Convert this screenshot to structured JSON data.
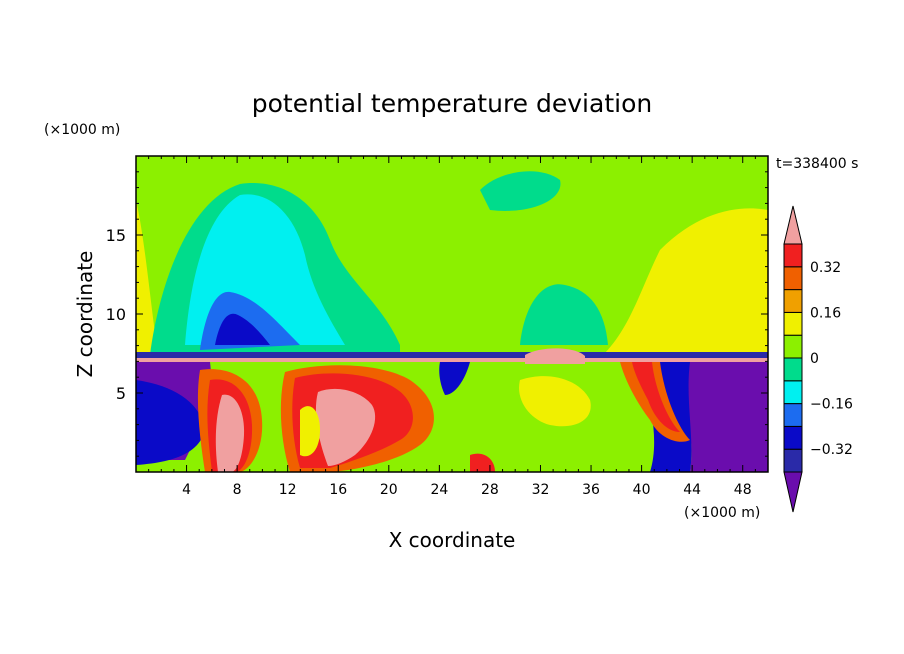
{
  "chart_data": {
    "type": "heatmap",
    "title": "potential temperature deviation",
    "xlabel": "X coordinate",
    "ylabel": "Z coordinate",
    "x_unit": "(×1000 m)",
    "y_unit": "(×1000 m)",
    "time_label": "t=338400 s",
    "xlim": [
      0,
      50
    ],
    "ylim": [
      0,
      20
    ],
    "x_ticks": [
      4,
      8,
      12,
      16,
      20,
      24,
      28,
      32,
      36,
      40,
      44,
      48
    ],
    "y_ticks": [
      5,
      10,
      15
    ],
    "colorbar": {
      "levels": [
        -0.4,
        -0.32,
        -0.24,
        -0.16,
        -0.08,
        0,
        0.08,
        0.16,
        0.24,
        0.32,
        0.4
      ],
      "labeled_levels": [
        0.32,
        0.16,
        0,
        -0.16,
        -0.32
      ],
      "labels": [
        "0.32",
        "0.16",
        "0",
        "−0.16",
        "−0.32"
      ],
      "colors_low_to_high": [
        "#6a0dad",
        "#2a2aa8",
        "#0a0ac8",
        "#1c6cf0",
        "#00f0f0",
        "#00dc8c",
        "#8cf000",
        "#f0f000",
        "#f0a000",
        "#f06000",
        "#f02020",
        "#f0a0a0"
      ]
    },
    "field_summary": {
      "upper_layer": "near-zero deviation (light green 0 to 0.08) above z≈7.5, with a negative region (-0.16 to -0.32, cyan/blue) centered near x≈8-16 and z≈10-18, and positive yellow bands near x≈0-2 and x≈40-50",
      "inversion": "thin band of sharp gradients at z≈7.2",
      "lower_layer": "strong mixed anomalies below z≈7: positive (red/pink >0.32) plumes near x≈7-10 and x≈14-20, negative (purple < -0.32) near x≈0-4 and x≈44-50"
    }
  }
}
